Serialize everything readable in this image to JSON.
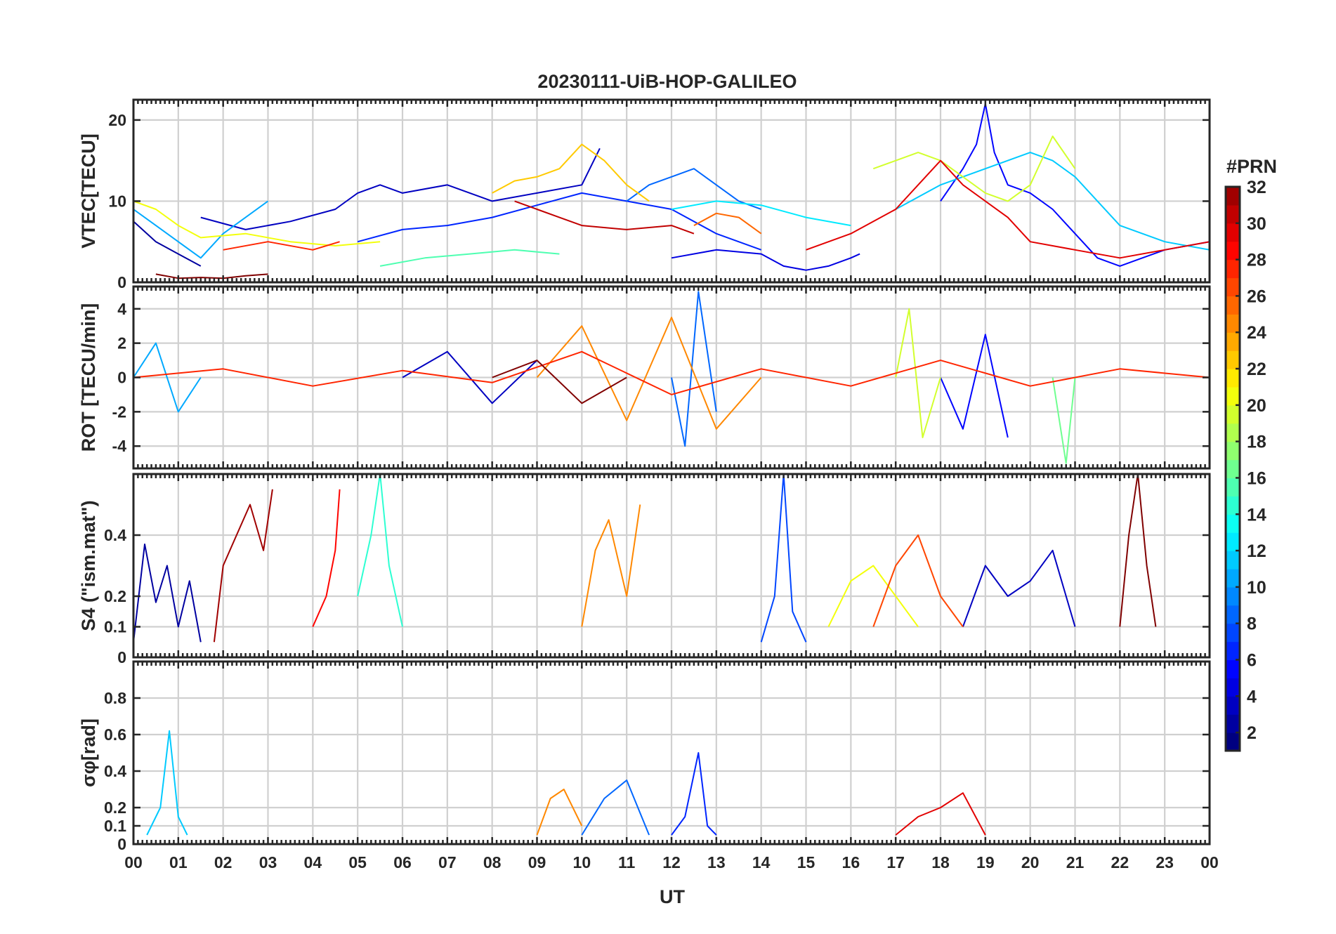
{
  "chart_data": {
    "type": "line",
    "title": "20230111-UiB-HOP-GALILEO",
    "xlabel": "UT",
    "x_tick_labels": [
      "00",
      "01",
      "02",
      "03",
      "04",
      "05",
      "06",
      "07",
      "08",
      "09",
      "10",
      "11",
      "12",
      "13",
      "14",
      "15",
      "16",
      "17",
      "18",
      "19",
      "20",
      "21",
      "22",
      "23",
      "00"
    ],
    "xlim": [
      0,
      24
    ],
    "x_unit": "hours UT",
    "panels": [
      {
        "id": "vtec",
        "ylabel": "VTEC[TECU]",
        "ylim": [
          0,
          22.5
        ],
        "yticks": [
          0,
          10,
          20
        ],
        "ytick_labels": [
          "0",
          "10",
          "20"
        ],
        "grid": true,
        "series": [
          {
            "prn": 2,
            "x": [
              0,
              0.5,
              1.0,
              1.5
            ],
            "y": [
              7.5,
              5.0,
              3.5,
              2.0
            ]
          },
          {
            "prn": 3,
            "x": [
              1.5,
              2.5,
              3.5,
              4.5,
              5.0,
              5.5,
              6.0,
              7.0,
              8.0,
              9.0,
              10.0,
              10.4
            ],
            "y": [
              8.0,
              6.5,
              7.5,
              9.0,
              11.0,
              12.0,
              11.0,
              12.0,
              10.0,
              11.0,
              12.0,
              16.5
            ]
          },
          {
            "prn": 4,
            "x": [
              12.0,
              13.0,
              14.0,
              14.5,
              15.0,
              15.5,
              16.0,
              16.2
            ],
            "y": [
              3.0,
              4.0,
              3.5,
              2.0,
              1.5,
              2.0,
              3.0,
              3.5
            ]
          },
          {
            "prn": 5,
            "x": [
              18.0,
              18.5,
              18.8,
              19.0,
              19.2,
              19.5,
              20.0,
              20.5,
              21.0,
              21.5,
              22.0,
              22.5,
              23.0,
              24.0
            ],
            "y": [
              10.0,
              14.0,
              17.0,
              22.0,
              16.0,
              12.0,
              11.0,
              9.0,
              6.0,
              3.0,
              2.0,
              3.0,
              4.0,
              5.0
            ]
          },
          {
            "prn": 6,
            "x": [
              5.0,
              6.0,
              7.0,
              8.0,
              9.0,
              10.0,
              11.0,
              12.0,
              13.0,
              14.0
            ],
            "y": [
              5.0,
              6.5,
              7.0,
              8.0,
              9.5,
              11.0,
              10.0,
              9.0,
              6.0,
              4.0
            ]
          },
          {
            "prn": 8,
            "x": [
              11.0,
              11.5,
              12.0,
              12.5,
              13.0,
              13.5,
              14.0
            ],
            "y": [
              10.0,
              12.0,
              13.0,
              14.0,
              12.0,
              10.0,
              9.0
            ]
          },
          {
            "prn": 10,
            "x": [
              0,
              0.5,
              1.0,
              1.5,
              2.0,
              2.5,
              3.0
            ],
            "y": [
              9.0,
              7.0,
              5.0,
              3.0,
              6.0,
              8.0,
              10.0
            ]
          },
          {
            "prn": 11,
            "x": [
              17.0,
              18.0,
              19.0,
              20.0,
              20.5,
              21.0,
              22.0,
              23.0,
              24.0
            ],
            "y": [
              9.0,
              12.0,
              14.0,
              16.0,
              15.0,
              13.0,
              7.0,
              5.0,
              4.0
            ]
          },
          {
            "prn": 12,
            "x": [
              12.0,
              13.0,
              14.0,
              15.0,
              16.0
            ],
            "y": [
              9.0,
              10.0,
              9.5,
              8.0,
              7.0
            ]
          },
          {
            "prn": 15,
            "x": [
              5.5,
              6.5,
              7.5,
              8.5,
              9.5
            ],
            "y": [
              2.0,
              3.0,
              3.5,
              4.0,
              3.5
            ]
          },
          {
            "prn": 19,
            "x": [
              16.5,
              17.5,
              18.0,
              18.5,
              19.0,
              19.5,
              20.0,
              20.5,
              21.0
            ],
            "y": [
              14.0,
              16.0,
              15.0,
              13.0,
              11.0,
              10.0,
              12.0,
              18.0,
              14.0
            ]
          },
          {
            "prn": 20,
            "x": [
              0,
              0.5,
              1.0,
              1.5,
              2.5,
              3.5,
              4.5,
              5.5
            ],
            "y": [
              10.0,
              9.0,
              7.0,
              5.5,
              6.0,
              5.0,
              4.5,
              5.0
            ]
          },
          {
            "prn": 22,
            "x": [
              8.0,
              8.5,
              9.0,
              9.5,
              10.0,
              10.5,
              11.0,
              11.5
            ],
            "y": [
              11.0,
              12.5,
              13.0,
              14.0,
              17.0,
              15.0,
              12.0,
              10.0
            ]
          },
          {
            "prn": 25,
            "x": [
              12.5,
              13.0,
              13.5,
              14.0
            ],
            "y": [
              7.0,
              8.5,
              8.0,
              6.0
            ]
          },
          {
            "prn": 27,
            "x": [
              2.0,
              3.0,
              4.0,
              4.6
            ],
            "y": [
              4.0,
              5.0,
              4.0,
              5.0
            ]
          },
          {
            "prn": 29,
            "x": [
              15.0,
              16.0,
              17.0,
              17.5,
              18.0,
              18.5,
              19.0,
              19.5,
              20.0,
              21.0,
              22.0,
              23.0,
              24.0
            ],
            "y": [
              4.0,
              6.0,
              9.0,
              12.0,
              15.0,
              12.0,
              10.0,
              8.0,
              5.0,
              4.0,
              3.0,
              4.0,
              5.0
            ]
          },
          {
            "prn": 30,
            "x": [
              8.5,
              9.0,
              9.5,
              10.0,
              11.0,
              12.0,
              12.5
            ],
            "y": [
              10.0,
              9.0,
              8.0,
              7.0,
              6.5,
              7.0,
              6.0
            ]
          },
          {
            "prn": 32,
            "x": [
              0.5,
              1.0,
              1.5,
              2.0,
              2.5,
              3.0
            ],
            "y": [
              1.0,
              0.5,
              0.6,
              0.5,
              0.8,
              1.0
            ]
          }
        ]
      },
      {
        "id": "rot",
        "ylabel": "ROT [TECU/min]",
        "ylim": [
          -5.3,
          5.3
        ],
        "yticks": [
          -4,
          -2,
          0,
          2,
          4
        ],
        "ytick_labels": [
          "-4",
          "-2",
          "0",
          "2",
          "4"
        ],
        "grid": true,
        "series": [
          {
            "prn": 3,
            "x": [
              6.0,
              7.0,
              8.0,
              9.0
            ],
            "y": [
              0.0,
              1.5,
              -1.5,
              1.0
            ]
          },
          {
            "prn": 5,
            "x": [
              18.0,
              18.5,
              19.0,
              19.5
            ],
            "y": [
              0.0,
              -3.0,
              2.5,
              -3.5
            ]
          },
          {
            "prn": 8,
            "x": [
              12.0,
              12.3,
              12.6,
              13.0
            ],
            "y": [
              0.0,
              -4.0,
              5.0,
              -2.0
            ]
          },
          {
            "prn": 10,
            "x": [
              0,
              0.5,
              1.0,
              1.5
            ],
            "y": [
              0.0,
              2.0,
              -2.0,
              0.0
            ]
          },
          {
            "prn": 16,
            "x": [
              20.5,
              20.8,
              21.0
            ],
            "y": [
              0.0,
              -5.0,
              0.0
            ]
          },
          {
            "prn": 19,
            "x": [
              17.0,
              17.3,
              17.6,
              18.0
            ],
            "y": [
              0.0,
              4.0,
              -3.5,
              0.0
            ]
          },
          {
            "prn": 24,
            "x": [
              9.0,
              10.0,
              11.0,
              12.0,
              13.0,
              14.0
            ],
            "y": [
              0.0,
              3.0,
              -2.5,
              3.5,
              -3.0,
              0.0
            ]
          },
          {
            "prn": 27,
            "x": [
              0,
              2,
              4,
              6,
              8,
              10,
              12,
              14,
              16,
              18,
              20,
              22,
              24
            ],
            "y": [
              0.0,
              0.5,
              -0.5,
              0.4,
              -0.3,
              1.5,
              -1.0,
              0.5,
              -0.5,
              1.0,
              -0.5,
              0.5,
              0.0
            ]
          },
          {
            "prn": 32,
            "x": [
              8.0,
              9.0,
              10.0,
              11.0
            ],
            "y": [
              0.0,
              1.0,
              -1.5,
              0.0
            ]
          }
        ]
      },
      {
        "id": "s4",
        "ylabel": "S4 (\"ism.mat\")",
        "ylim": [
          0,
          0.6
        ],
        "yticks": [
          0,
          0.1,
          0.2,
          0.4
        ],
        "ytick_labels": [
          "0",
          "0.1",
          "0.2",
          "0.4"
        ],
        "grid": true,
        "series": [
          {
            "prn": 2,
            "x": [
              0,
              0.25,
              0.5,
              0.75,
              1.0,
              1.25,
              1.5
            ],
            "y": [
              0.05,
              0.37,
              0.18,
              0.3,
              0.1,
              0.25,
              0.05
            ]
          },
          {
            "prn": 3,
            "x": [
              18.5,
              19.0,
              19.5,
              20.0,
              20.5,
              21.0
            ],
            "y": [
              0.1,
              0.3,
              0.2,
              0.25,
              0.35,
              0.1
            ]
          },
          {
            "prn": 7,
            "x": [
              14.0,
              14.3,
              14.5,
              14.7,
              15.0
            ],
            "y": [
              0.05,
              0.2,
              0.6,
              0.15,
              0.05
            ]
          },
          {
            "prn": 14,
            "x": [
              5.0,
              5.3,
              5.5,
              5.7,
              6.0
            ],
            "y": [
              0.2,
              0.4,
              0.6,
              0.3,
              0.1
            ]
          },
          {
            "prn": 20,
            "x": [
              15.5,
              16.0,
              16.5,
              17.0,
              17.5
            ],
            "y": [
              0.1,
              0.25,
              0.3,
              0.2,
              0.1
            ]
          },
          {
            "prn": 24,
            "x": [
              10.0,
              10.3,
              10.6,
              11.0,
              11.3
            ],
            "y": [
              0.1,
              0.35,
              0.45,
              0.2,
              0.5
            ]
          },
          {
            "prn": 26,
            "x": [
              16.5,
              17.0,
              17.5,
              18.0,
              18.5
            ],
            "y": [
              0.1,
              0.3,
              0.4,
              0.2,
              0.1
            ]
          },
          {
            "prn": 28,
            "x": [
              4.0,
              4.3,
              4.5,
              4.6
            ],
            "y": [
              0.1,
              0.2,
              0.35,
              0.55
            ]
          },
          {
            "prn": 31,
            "x": [
              1.8,
              2.0,
              2.3,
              2.6,
              2.9,
              3.1
            ],
            "y": [
              0.05,
              0.3,
              0.4,
              0.5,
              0.35,
              0.55
            ]
          },
          {
            "prn": 32,
            "x": [
              22.0,
              22.2,
              22.4,
              22.6,
              22.8
            ],
            "y": [
              0.1,
              0.4,
              0.6,
              0.3,
              0.1
            ]
          }
        ]
      },
      {
        "id": "sigma_phi",
        "ylabel": "σφ[rad]",
        "ylim": [
          0,
          1.0
        ],
        "yticks": [
          0,
          0.1,
          0.2,
          0.4,
          0.6,
          0.8
        ],
        "ytick_labels": [
          "0",
          "0.1",
          "0.2",
          "0.4",
          "0.6",
          "0.8"
        ],
        "grid": true,
        "series": [
          {
            "prn": 6,
            "x": [
              12.0,
              12.3,
              12.6,
              12.8,
              13.0
            ],
            "y": [
              0.05,
              0.15,
              0.5,
              0.1,
              0.05
            ]
          },
          {
            "prn": 8,
            "x": [
              10.0,
              10.5,
              11.0,
              11.5
            ],
            "y": [
              0.05,
              0.25,
              0.35,
              0.05
            ]
          },
          {
            "prn": 11,
            "x": [
              0.3,
              0.6,
              0.8,
              1.0,
              1.2
            ],
            "y": [
              0.05,
              0.2,
              0.62,
              0.15,
              0.05
            ]
          },
          {
            "prn": 24,
            "x": [
              9.0,
              9.3,
              9.6,
              10.0
            ],
            "y": [
              0.05,
              0.25,
              0.3,
              0.1
            ]
          },
          {
            "prn": 29,
            "x": [
              17.0,
              17.5,
              18.0,
              18.5,
              19.0
            ],
            "y": [
              0.05,
              0.15,
              0.2,
              0.28,
              0.05
            ]
          }
        ]
      }
    ],
    "colorbar": {
      "label": "#PRN",
      "range": [
        1,
        32
      ],
      "ticks": [
        2,
        4,
        6,
        8,
        10,
        12,
        14,
        16,
        18,
        20,
        22,
        24,
        26,
        28,
        30,
        32
      ],
      "tick_labels": [
        "2",
        "4",
        "6",
        "8",
        "10",
        "12",
        "14",
        "16",
        "18",
        "20",
        "22",
        "24",
        "26",
        "28",
        "30",
        "32"
      ],
      "colormap": "jet"
    }
  }
}
